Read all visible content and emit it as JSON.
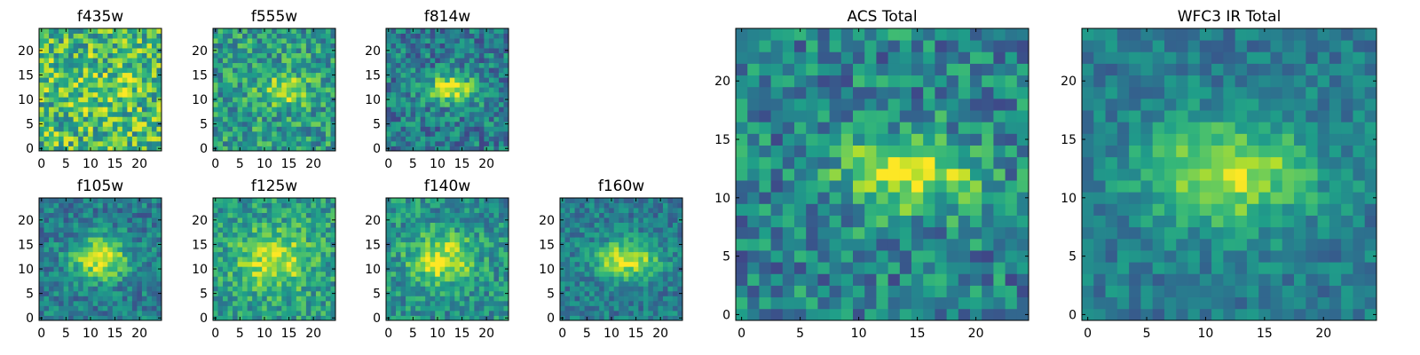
{
  "chart_data": [
    {
      "type": "heatmap",
      "title": "f435w",
      "xlim": [
        0,
        24
      ],
      "ylim": [
        0,
        24
      ],
      "x_ticks": [
        "0",
        "5",
        "10",
        "15",
        "20"
      ],
      "y_ticks": [
        "0",
        "5",
        "10",
        "15",
        "20"
      ],
      "grid": false,
      "colormap": "viridis",
      "blob": {
        "x": 13,
        "y": 12,
        "sx": 4.0,
        "sy": 2.5,
        "amp": 0.15,
        "base": 0.68,
        "noise": 0.3
      }
    },
    {
      "type": "heatmap",
      "title": "f555w",
      "xlim": [
        0,
        24
      ],
      "ylim": [
        0,
        24
      ],
      "x_ticks": [
        "0",
        "5",
        "10",
        "15",
        "20"
      ],
      "y_ticks": [
        "0",
        "5",
        "10",
        "15",
        "20"
      ],
      "grid": false,
      "colormap": "viridis",
      "blob": {
        "x": 14,
        "y": 12,
        "sx": 3.5,
        "sy": 2.2,
        "amp": 0.35,
        "base": 0.55,
        "noise": 0.24
      }
    },
    {
      "type": "heatmap",
      "title": "f814w",
      "xlim": [
        0,
        24
      ],
      "ylim": [
        0,
        24
      ],
      "x_ticks": [
        "0",
        "5",
        "10",
        "15",
        "20"
      ],
      "y_ticks": [
        "0",
        "5",
        "10",
        "15",
        "20"
      ],
      "grid": false,
      "colormap": "viridis",
      "blob": {
        "x": 13,
        "y": 12,
        "sx": 4.0,
        "sy": 2.0,
        "amp": 0.55,
        "base": 0.42,
        "noise": 0.22
      }
    },
    {
      "type": "heatmap",
      "title": "f105w",
      "xlim": [
        0,
        24
      ],
      "ylim": [
        0,
        24
      ],
      "x_ticks": [
        "0",
        "5",
        "10",
        "15",
        "20"
      ],
      "y_ticks": [
        "0",
        "5",
        "10",
        "15",
        "20"
      ],
      "grid": false,
      "colormap": "viridis",
      "blob": {
        "x": 12,
        "y": 12,
        "sx": 4.0,
        "sy": 3.0,
        "amp": 0.55,
        "base": 0.42,
        "noise": 0.18
      }
    },
    {
      "type": "heatmap",
      "title": "f125w",
      "xlim": [
        0,
        24
      ],
      "ylim": [
        0,
        24
      ],
      "x_ticks": [
        "0",
        "5",
        "10",
        "15",
        "20"
      ],
      "y_ticks": [
        "0",
        "5",
        "10",
        "15",
        "20"
      ],
      "grid": false,
      "colormap": "viridis",
      "blob": {
        "x": 12,
        "y": 12,
        "sx": 5.0,
        "sy": 4.0,
        "amp": 0.4,
        "base": 0.55,
        "noise": 0.2
      }
    },
    {
      "type": "heatmap",
      "title": "f140w",
      "xlim": [
        0,
        24
      ],
      "ylim": [
        0,
        24
      ],
      "x_ticks": [
        "0",
        "5",
        "10",
        "15",
        "20"
      ],
      "y_ticks": [
        "0",
        "5",
        "10",
        "15",
        "20"
      ],
      "grid": false,
      "colormap": "viridis",
      "blob": {
        "x": 11,
        "y": 12,
        "sx": 4.5,
        "sy": 3.5,
        "amp": 0.45,
        "base": 0.5,
        "noise": 0.2
      }
    },
    {
      "type": "heatmap",
      "title": "f160w",
      "xlim": [
        0,
        24
      ],
      "ylim": [
        0,
        24
      ],
      "x_ticks": [
        "0",
        "5",
        "10",
        "15",
        "20"
      ],
      "y_ticks": [
        "0",
        "5",
        "10",
        "15",
        "20"
      ],
      "grid": false,
      "colormap": "viridis",
      "blob": {
        "x": 13,
        "y": 12,
        "sx": 4.5,
        "sy": 2.5,
        "amp": 0.55,
        "base": 0.42,
        "noise": 0.16
      }
    },
    {
      "type": "heatmap",
      "title": "ACS Total",
      "xlim": [
        0,
        24
      ],
      "ylim": [
        0,
        24
      ],
      "x_ticks": [
        "0",
        "5",
        "10",
        "15",
        "20"
      ],
      "y_ticks": [
        "0",
        "5",
        "10",
        "15",
        "20"
      ],
      "grid": false,
      "colormap": "viridis",
      "blob": {
        "x": 14,
        "y": 12,
        "sx": 4.0,
        "sy": 2.2,
        "amp": 0.55,
        "base": 0.45,
        "noise": 0.24
      }
    },
    {
      "type": "heatmap",
      "title": "WFC3 IR Total",
      "xlim": [
        0,
        24
      ],
      "ylim": [
        0,
        24
      ],
      "x_ticks": [
        "0",
        "5",
        "10",
        "15",
        "20"
      ],
      "y_ticks": [
        "0",
        "5",
        "10",
        "15",
        "20"
      ],
      "grid": false,
      "colormap": "viridis",
      "blob": {
        "x": 12,
        "y": 12,
        "sx": 5.0,
        "sy": 3.0,
        "amp": 0.5,
        "base": 0.42,
        "noise": 0.14
      }
    }
  ]
}
